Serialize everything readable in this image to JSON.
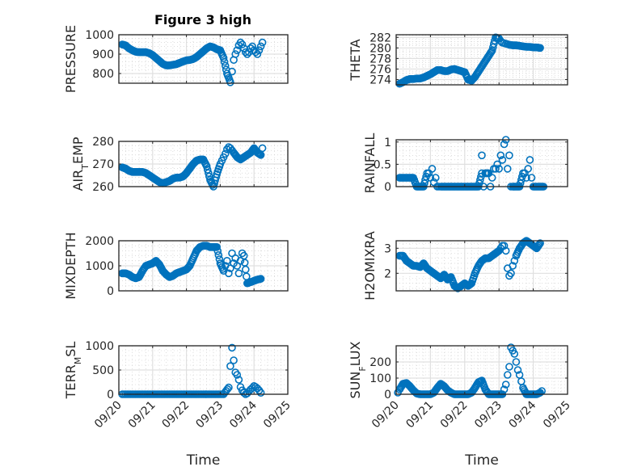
{
  "figure_title": "Figure 3 high",
  "marker_color": "#0072BD",
  "chart_data": [
    {
      "type": "scatter",
      "id": "pressure",
      "title": "Figure 3 high",
      "ylabel": "PRESSURE",
      "xlabel": "",
      "xlim": [
        0,
        5
      ],
      "ylim": [
        750,
        1000
      ],
      "yticks": [
        800,
        900,
        1000
      ],
      "ytick_labels": [
        "800",
        "900",
        "1000"
      ],
      "xticks": [
        0,
        1,
        2,
        3,
        4,
        5
      ],
      "xtick_labels": [
        "09/20",
        "09/21",
        "09/22",
        "09/23",
        "09/24",
        "09/25"
      ],
      "show_xtick_labels": false,
      "grid": true,
      "x": [
        0.1,
        0.2,
        0.3,
        0.4,
        0.5,
        0.6,
        0.7,
        0.8,
        0.9,
        1.0,
        1.1,
        1.2,
        1.3,
        1.4,
        1.5,
        1.6,
        1.7,
        1.8,
        1.9,
        2.0,
        2.1,
        2.2,
        2.3,
        2.4,
        2.5,
        2.6,
        2.7,
        2.8,
        2.9,
        3.0,
        3.1,
        3.2,
        3.3,
        3.35,
        3.4,
        3.45,
        3.5,
        3.55,
        3.6,
        3.65,
        3.7,
        3.75,
        3.8,
        3.85,
        3.9,
        3.95,
        4.0,
        4.05,
        4.1,
        4.15,
        4.2,
        4.25
      ],
      "y": [
        950,
        945,
        930,
        920,
        912,
        910,
        910,
        910,
        905,
        895,
        880,
        865,
        850,
        842,
        842,
        845,
        848,
        855,
        862,
        868,
        870,
        875,
        885,
        900,
        915,
        930,
        940,
        935,
        925,
        920,
        880,
        800,
        755,
        810,
        870,
        900,
        920,
        945,
        960,
        950,
        930,
        910,
        900,
        910,
        930,
        940,
        920,
        910,
        900,
        920,
        940,
        960
      ]
    },
    {
      "type": "scatter",
      "id": "theta",
      "ylabel": "THETA",
      "xlabel": "",
      "xlim": [
        0,
        5
      ],
      "ylim": [
        273,
        282.5
      ],
      "yticks": [
        274,
        276,
        278,
        280,
        282
      ],
      "ytick_labels": [
        "274",
        "276",
        "278",
        "280",
        "282"
      ],
      "xticks": [
        0,
        1,
        2,
        3,
        4,
        5
      ],
      "xtick_labels": [
        "09/20",
        "09/21",
        "09/22",
        "09/23",
        "09/24",
        "09/25"
      ],
      "show_xtick_labels": false,
      "grid": true,
      "x": [
        0.1,
        0.2,
        0.3,
        0.4,
        0.5,
        0.6,
        0.7,
        0.8,
        0.9,
        1.0,
        1.1,
        1.2,
        1.3,
        1.4,
        1.5,
        1.6,
        1.7,
        1.8,
        1.9,
        2.0,
        2.1,
        2.2,
        2.3,
        2.4,
        2.5,
        2.6,
        2.7,
        2.8,
        2.9,
        3.0,
        3.05,
        3.1,
        3.15,
        3.2,
        3.25,
        3.3,
        3.4,
        3.5,
        3.6,
        3.7,
        3.8,
        3.9,
        4.0,
        4.1,
        4.2
      ],
      "y": [
        273.2,
        273.5,
        273.9,
        274.1,
        274.1,
        274.2,
        274.2,
        274.4,
        274.7,
        275.0,
        275.4,
        275.8,
        275.8,
        275.6,
        275.6,
        275.9,
        276.0,
        275.8,
        275.6,
        275.4,
        274.0,
        273.8,
        274.5,
        275.5,
        276.5,
        277.5,
        278.5,
        279.5,
        282.0,
        281.8,
        281.3,
        281.0,
        280.9,
        280.8,
        280.7,
        280.6,
        280.5,
        280.5,
        280.4,
        280.3,
        280.2,
        280.2,
        280.1,
        280.1,
        280.0
      ]
    },
    {
      "type": "scatter",
      "id": "air_temp",
      "ylabel": "AIR_TEMP",
      "xlabel": "",
      "xlim": [
        0,
        5
      ],
      "ylim": [
        260,
        280
      ],
      "yticks": [
        260,
        270,
        280
      ],
      "ytick_labels": [
        "260",
        "270",
        "280"
      ],
      "xticks": [
        0,
        1,
        2,
        3,
        4,
        5
      ],
      "xtick_labels": [
        "09/20",
        "09/21",
        "09/22",
        "09/23",
        "09/24",
        "09/25"
      ],
      "show_xtick_labels": false,
      "grid": true,
      "x": [
        0.1,
        0.2,
        0.3,
        0.4,
        0.5,
        0.6,
        0.7,
        0.8,
        0.9,
        1.0,
        1.1,
        1.2,
        1.3,
        1.4,
        1.5,
        1.6,
        1.7,
        1.8,
        1.9,
        2.0,
        2.1,
        2.2,
        2.3,
        2.4,
        2.5,
        2.6,
        2.7,
        2.8,
        2.9,
        3.0,
        3.05,
        3.1,
        3.15,
        3.2,
        3.25,
        3.3,
        3.35,
        3.4,
        3.5,
        3.6,
        3.7,
        3.8,
        3.9,
        4.0,
        4.1,
        4.2,
        4.25
      ],
      "y": [
        268.5,
        268.0,
        267.0,
        266.5,
        266.5,
        266.5,
        266.5,
        266.0,
        265.0,
        264.0,
        263.0,
        262.0,
        261.5,
        262.0,
        262.5,
        263.5,
        264.0,
        264.0,
        264.5,
        266.0,
        268.0,
        270.0,
        271.5,
        272.0,
        272.0,
        269.0,
        263.0,
        260.0,
        265.5,
        270.0,
        271.5,
        273.0,
        274.5,
        276.5,
        277.5,
        277.0,
        276.0,
        275.0,
        273.0,
        272.0,
        273.0,
        274.0,
        275.0,
        277.0,
        275.0,
        274.0,
        277.0
      ]
    },
    {
      "type": "scatter",
      "id": "rainfall",
      "ylabel": "RAINFALL",
      "xlabel": "",
      "xlim": [
        0,
        5
      ],
      "ylim": [
        0,
        1.05
      ],
      "yticks": [
        0,
        0.5,
        1
      ],
      "ytick_labels": [
        "0",
        "0.5",
        "1"
      ],
      "xticks": [
        0,
        1,
        2,
        3,
        4,
        5
      ],
      "xtick_labels": [
        "09/20",
        "09/21",
        "09/22",
        "09/23",
        "09/24",
        "09/25"
      ],
      "show_xtick_labels": false,
      "grid": true,
      "x": [
        0.1,
        0.2,
        0.3,
        0.4,
        0.5,
        0.6,
        0.7,
        0.8,
        0.9,
        0.95,
        1.0,
        1.05,
        1.1,
        1.15,
        1.2,
        1.25,
        1.3,
        1.4,
        1.5,
        1.6,
        1.7,
        1.8,
        1.9,
        2.0,
        2.1,
        2.2,
        2.3,
        2.4,
        2.5,
        2.5,
        2.55,
        2.6,
        2.7,
        2.75,
        2.8,
        2.85,
        2.9,
        2.95,
        3.0,
        3.05,
        3.1,
        3.15,
        3.2,
        3.25,
        3.3,
        3.35,
        3.4,
        3.5,
        3.6,
        3.7,
        3.75,
        3.8,
        3.85,
        3.9,
        3.95,
        4.0,
        4.1,
        4.2,
        4.3
      ],
      "y": [
        0.2,
        0.2,
        0.2,
        0.2,
        0.2,
        0.0,
        0.0,
        0.0,
        0.3,
        0.3,
        0.2,
        0.4,
        0.1,
        0.2,
        0.0,
        0.0,
        0.0,
        0.0,
        0.0,
        0.0,
        0.0,
        0.0,
        0.0,
        0.0,
        0.0,
        0.0,
        0.0,
        0.0,
        0.3,
        0.7,
        0.0,
        0.3,
        0.3,
        0.0,
        0.2,
        0.4,
        0.4,
        0.5,
        0.4,
        0.7,
        0.6,
        0.95,
        1.05,
        0.4,
        0.7,
        0.0,
        0.0,
        0.0,
        0.0,
        0.3,
        0.3,
        0.2,
        0.4,
        0.6,
        0.2,
        0.0,
        0.0,
        0.0,
        0.0
      ]
    },
    {
      "type": "scatter",
      "id": "mixdepth",
      "ylabel": "MIXDEPTH",
      "xlabel": "",
      "xlim": [
        0,
        5
      ],
      "ylim": [
        0,
        2000
      ],
      "yticks": [
        0,
        1000,
        2000
      ],
      "ytick_labels": [
        "0",
        "1000",
        "2000"
      ],
      "xticks": [
        0,
        1,
        2,
        3,
        4,
        5
      ],
      "xtick_labels": [
        "09/20",
        "09/21",
        "09/22",
        "09/23",
        "09/24",
        "09/25"
      ],
      "show_xtick_labels": false,
      "grid": true,
      "x": [
        0.1,
        0.2,
        0.3,
        0.4,
        0.5,
        0.6,
        0.7,
        0.8,
        0.9,
        1.0,
        1.1,
        1.2,
        1.3,
        1.4,
        1.5,
        1.6,
        1.7,
        1.8,
        1.9,
        2.0,
        2.1,
        2.2,
        2.3,
        2.4,
        2.5,
        2.6,
        2.7,
        2.8,
        2.9,
        3.0,
        3.1,
        3.15,
        3.2,
        3.25,
        3.3,
        3.35,
        3.4,
        3.45,
        3.5,
        3.55,
        3.6,
        3.65,
        3.7,
        3.8,
        3.9,
        4.0,
        4.1,
        4.2
      ],
      "y": [
        700,
        700,
        650,
        550,
        500,
        550,
        800,
        1000,
        1050,
        1100,
        1200,
        1050,
        800,
        650,
        550,
        600,
        700,
        750,
        800,
        850,
        1000,
        1300,
        1600,
        1750,
        1800,
        1800,
        1750,
        1750,
        1750,
        1100,
        800,
        1000,
        1200,
        700,
        900,
        1500,
        1100,
        1300,
        1000,
        700,
        1200,
        1500,
        1400,
        300,
        350,
        400,
        450,
        480
      ]
    },
    {
      "type": "scatter",
      "id": "h2omixra",
      "ylabel": "H2OMIXRA",
      "xlabel": "",
      "xlim": [
        0,
        5
      ],
      "ylim": [
        1.3,
        3.3
      ],
      "yticks": [
        2,
        3
      ],
      "ytick_labels": [
        "2",
        "3"
      ],
      "xticks": [
        0,
        1,
        2,
        3,
        4,
        5
      ],
      "xtick_labels": [
        "09/20",
        "09/21",
        "09/22",
        "09/23",
        "09/24",
        "09/25"
      ],
      "show_xtick_labels": false,
      "grid": true,
      "x": [
        0.1,
        0.2,
        0.3,
        0.4,
        0.5,
        0.6,
        0.7,
        0.8,
        0.9,
        1.0,
        1.1,
        1.2,
        1.3,
        1.4,
        1.5,
        1.6,
        1.7,
        1.8,
        1.9,
        2.0,
        2.1,
        2.2,
        2.3,
        2.4,
        2.5,
        2.6,
        2.7,
        2.8,
        2.9,
        3.0,
        3.05,
        3.1,
        3.15,
        3.2,
        3.25,
        3.3,
        3.35,
        3.4,
        3.45,
        3.5,
        3.6,
        3.7,
        3.8,
        3.9,
        4.0,
        4.1,
        4.2
      ],
      "y": [
        2.7,
        2.7,
        2.5,
        2.4,
        2.3,
        2.3,
        2.25,
        2.4,
        2.2,
        2.1,
        2.0,
        1.9,
        1.8,
        1.95,
        1.75,
        1.85,
        1.5,
        1.4,
        1.5,
        1.6,
        1.5,
        1.6,
        2.0,
        2.3,
        2.5,
        2.6,
        2.6,
        2.7,
        2.8,
        2.9,
        3.0,
        3.1,
        3.1,
        2.9,
        2.2,
        1.9,
        2.0,
        2.3,
        2.5,
        2.7,
        3.0,
        3.2,
        3.3,
        3.2,
        3.1,
        3.0,
        3.2
      ]
    },
    {
      "type": "scatter",
      "id": "terr_msl",
      "ylabel": "TERR_MSL",
      "xlabel": "Time",
      "xlim": [
        0,
        5
      ],
      "ylim": [
        0,
        1000
      ],
      "yticks": [
        0,
        500,
        1000
      ],
      "ytick_labels": [
        "0",
        "500",
        "1000"
      ],
      "xticks": [
        0,
        1,
        2,
        3,
        4,
        5
      ],
      "xtick_labels": [
        "09/20",
        "09/21",
        "09/22",
        "09/23",
        "09/24",
        "09/25"
      ],
      "show_xtick_labels": true,
      "grid": true,
      "x": [
        0.1,
        0.3,
        0.5,
        0.7,
        0.9,
        1.1,
        1.3,
        1.5,
        1.7,
        1.9,
        2.1,
        2.3,
        2.5,
        2.7,
        2.9,
        3.1,
        3.25,
        3.3,
        3.35,
        3.4,
        3.45,
        3.5,
        3.55,
        3.6,
        3.65,
        3.7,
        3.75,
        3.8,
        3.85,
        3.9,
        3.95,
        4.0,
        4.05,
        4.1,
        4.15,
        4.2
      ],
      "y": [
        0,
        0,
        0,
        0,
        0,
        0,
        0,
        0,
        0,
        0,
        0,
        0,
        0,
        0,
        0,
        0,
        140,
        580,
        960,
        700,
        450,
        400,
        300,
        150,
        80,
        30,
        0,
        20,
        60,
        100,
        130,
        170,
        150,
        120,
        80,
        30
      ]
    },
    {
      "type": "scatter",
      "id": "sun_flux",
      "ylabel": "SUN_FLUX",
      "xlabel": "Time",
      "xlim": [
        0,
        5
      ],
      "ylim": [
        0,
        300
      ],
      "yticks": [
        0,
        100,
        200
      ],
      "ytick_labels": [
        "0",
        "100",
        "200"
      ],
      "xticks": [
        0,
        1,
        2,
        3,
        4,
        5
      ],
      "xtick_labels": [
        "09/20",
        "09/21",
        "09/22",
        "09/23",
        "09/24",
        "09/25"
      ],
      "show_xtick_labels": true,
      "grid": true,
      "x": [
        0.05,
        0.1,
        0.2,
        0.3,
        0.4,
        0.5,
        0.6,
        0.7,
        0.8,
        0.9,
        1.0,
        1.1,
        1.2,
        1.3,
        1.4,
        1.5,
        1.6,
        1.7,
        1.8,
        1.9,
        2.0,
        2.1,
        2.2,
        2.3,
        2.4,
        2.5,
        2.6,
        2.7,
        2.8,
        2.9,
        3.0,
        3.1,
        3.15,
        3.2,
        3.25,
        3.3,
        3.35,
        3.4,
        3.45,
        3.5,
        3.55,
        3.6,
        3.65,
        3.7,
        3.8,
        3.9,
        4.0,
        4.1,
        4.2,
        4.25
      ],
      "y": [
        10,
        30,
        65,
        70,
        50,
        25,
        5,
        0,
        0,
        0,
        0,
        10,
        40,
        65,
        50,
        25,
        10,
        0,
        0,
        0,
        0,
        0,
        10,
        40,
        75,
        85,
        30,
        0,
        0,
        0,
        0,
        0,
        30,
        60,
        120,
        170,
        290,
        270,
        250,
        200,
        150,
        120,
        80,
        40,
        0,
        0,
        0,
        0,
        10,
        20
      ]
    }
  ]
}
